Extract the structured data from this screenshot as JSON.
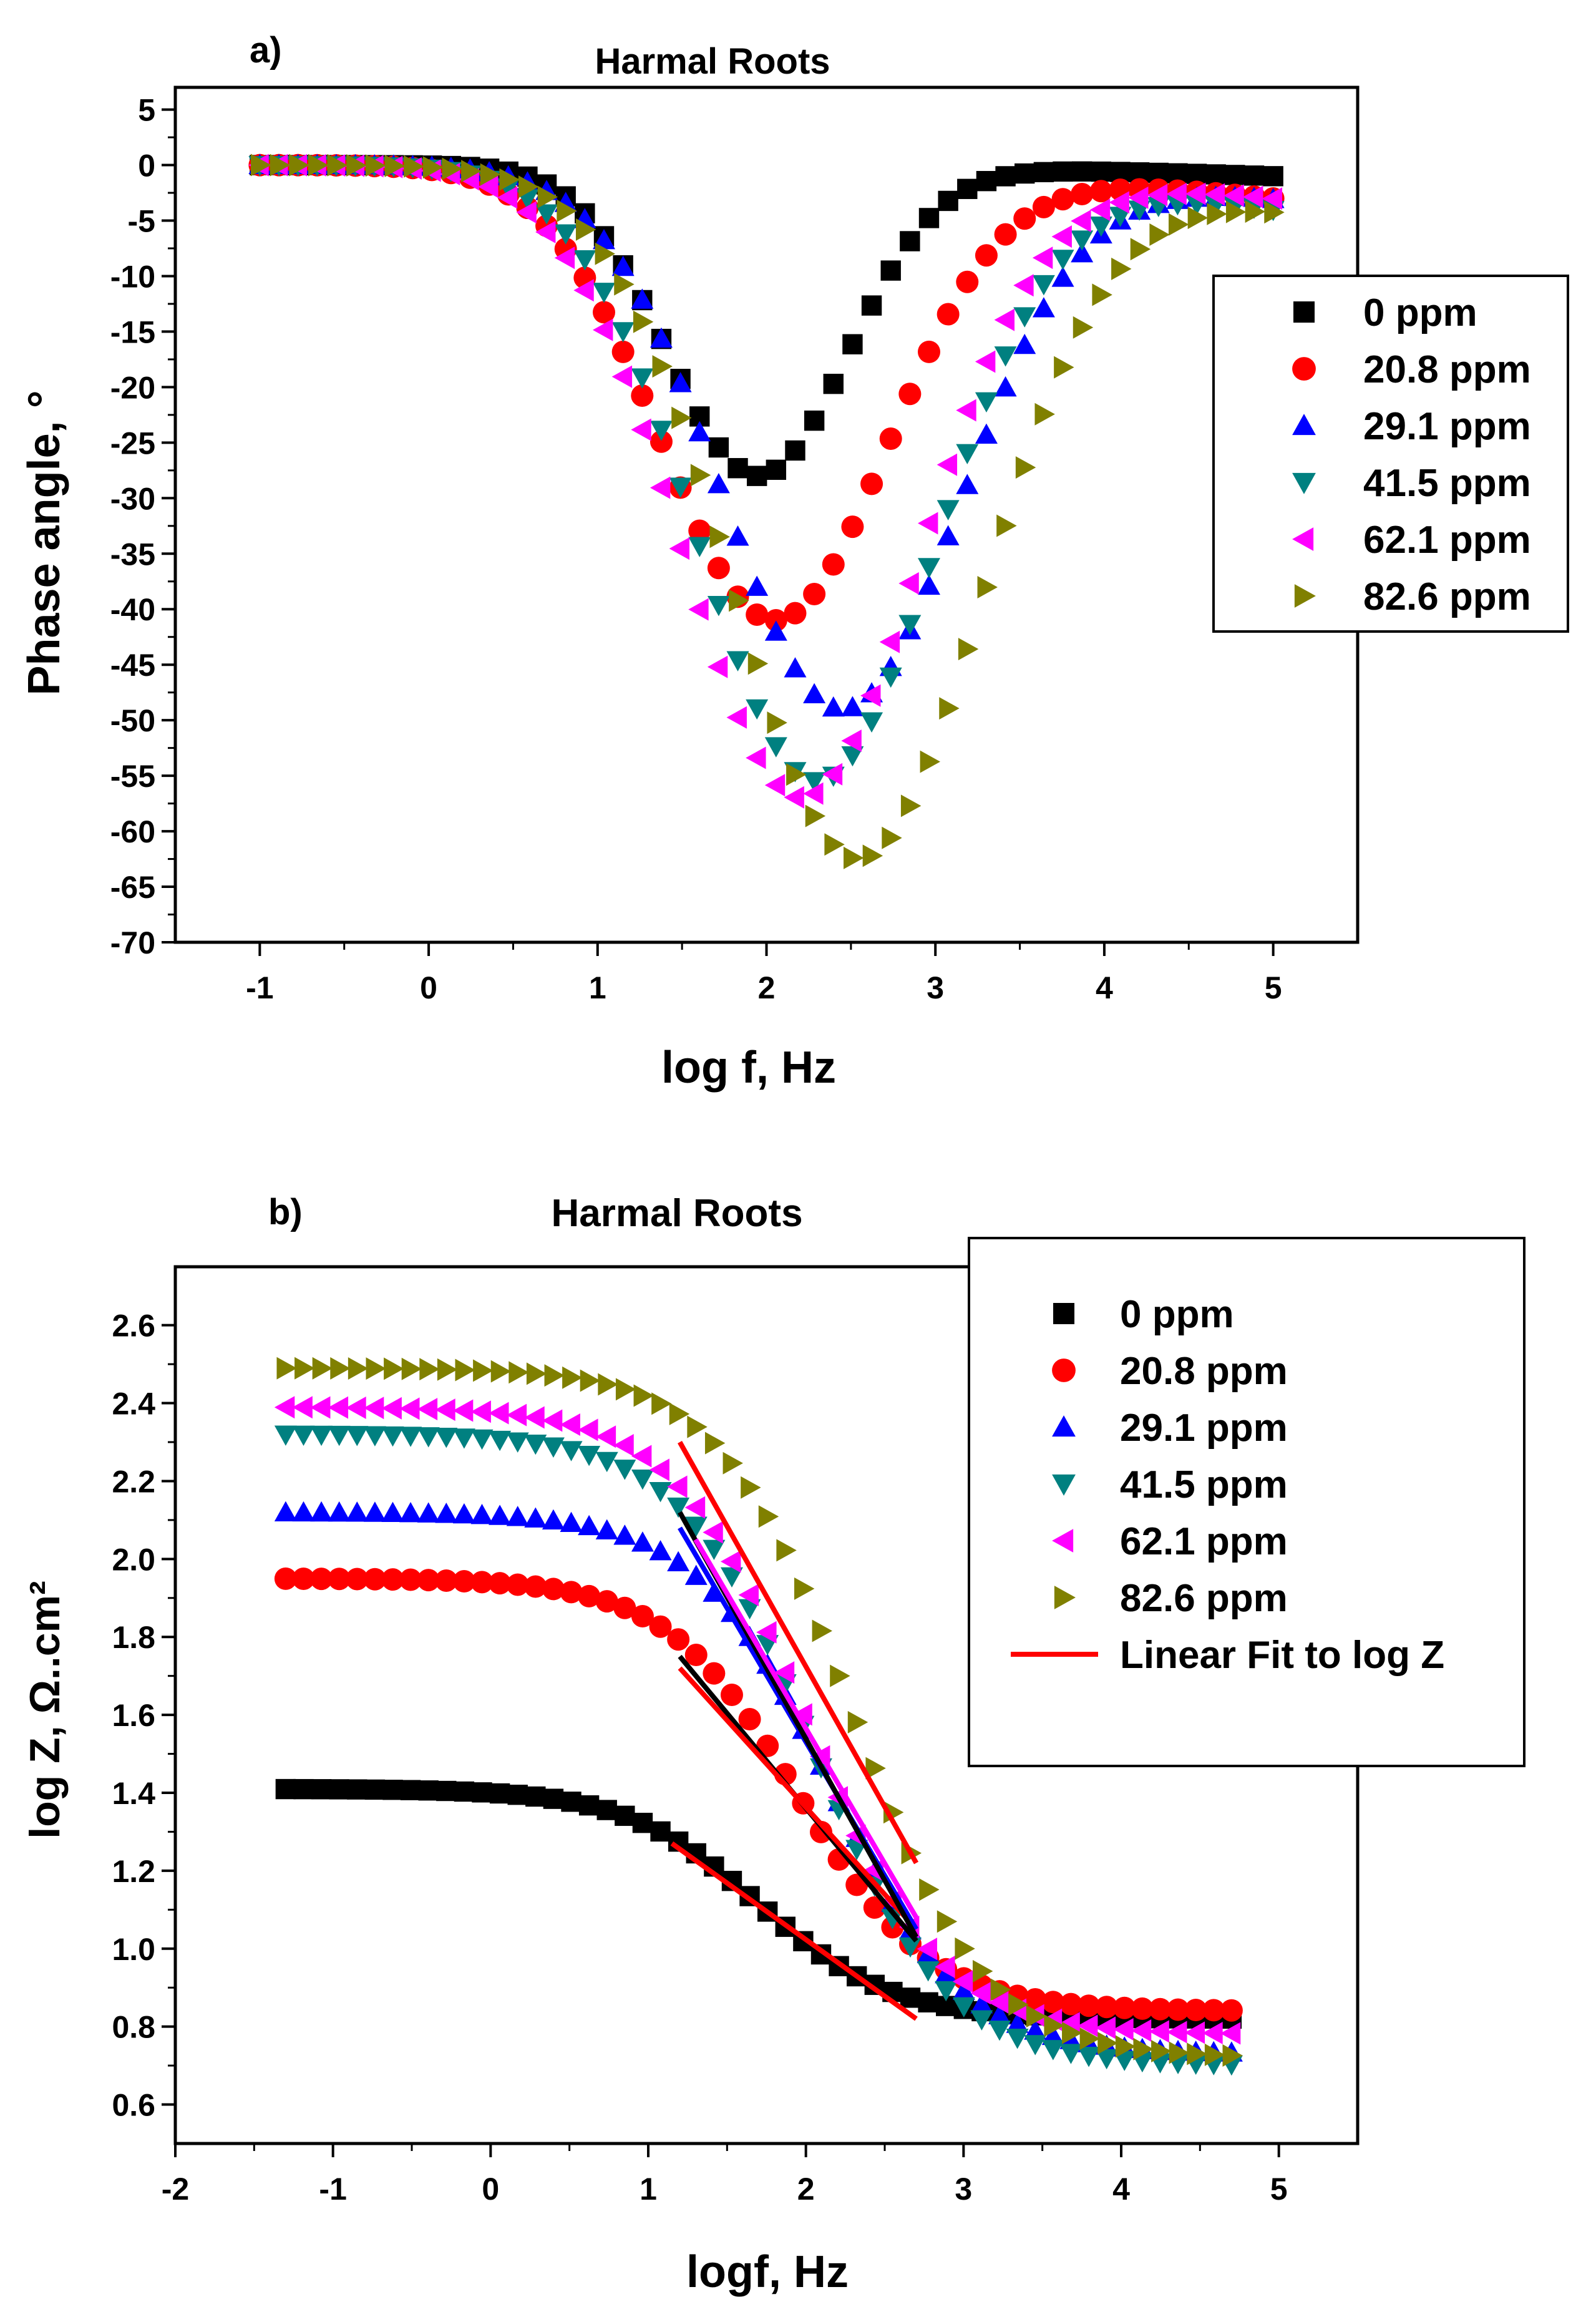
{
  "chart_data": [
    {
      "type": "scatter",
      "panel_label": "a)",
      "title": "Harmal Roots",
      "xlabel": "log f, Hz",
      "ylabel": "Phase angle, °",
      "xlim": [
        -1.5,
        5.5
      ],
      "ylim": [
        -70,
        7
      ],
      "xticks": [
        -1,
        0,
        1,
        2,
        3,
        4,
        5
      ],
      "yticks": [
        5,
        0,
        -5,
        -10,
        -15,
        -20,
        -25,
        -30,
        -35,
        -40,
        -45,
        -50,
        -55,
        -60,
        -65,
        -70
      ],
      "legend_position": "right",
      "series": [
        {
          "name": "0 ppm",
          "marker": "square",
          "color": "#000000",
          "model": "gauss",
          "depth": -28,
          "center": 1.95,
          "width": 0.75,
          "end": -1,
          "xmin": -1,
          "xmax": 5,
          "n": 54
        },
        {
          "name": "20.8 ppm",
          "marker": "circle",
          "color": "#ff0000",
          "model": "gauss",
          "depth": -41,
          "center": 2.05,
          "width": 0.95,
          "end": -3,
          "xmin": -1,
          "xmax": 5,
          "n": 54
        },
        {
          "name": "29.1 ppm",
          "marker": "triangle-up",
          "color": "#0000ff",
          "model": "gauss",
          "depth": -49,
          "center": 2.45,
          "width": 1.0,
          "end": -3,
          "xmin": -1,
          "xmax": 5,
          "n": 54
        },
        {
          "name": "41.5 ppm",
          "marker": "triangle-down",
          "color": "#008080",
          "model": "gauss",
          "depth": -55.5,
          "center": 2.3,
          "width": 1.0,
          "end": -4,
          "xmin": -1,
          "xmax": 5,
          "n": 54
        },
        {
          "name": "62.1 ppm",
          "marker": "triangle-left",
          "color": "#ff00ff",
          "model": "gauss",
          "depth": -57,
          "center": 2.2,
          "width": 1.0,
          "end": -3,
          "xmin": -1,
          "xmax": 5,
          "n": 54
        },
        {
          "name": "82.6 ppm",
          "marker": "triangle-right",
          "color": "#808000",
          "model": "gauss",
          "depth": -62.5,
          "center": 2.55,
          "width": 1.05,
          "end": -4,
          "xmin": -1,
          "xmax": 5,
          "n": 54
        }
      ]
    },
    {
      "type": "scatter",
      "panel_label": "b)",
      "title": "Harmal Roots",
      "xlabel": "logf, Hz",
      "ylabel": "log Z, Ω..cm²",
      "xlim": [
        -2,
        5.5
      ],
      "ylim": [
        0.5,
        2.75
      ],
      "xticks": [
        -2,
        -1,
        0,
        1,
        2,
        3,
        4,
        5
      ],
      "yticks": [
        0.6,
        0.8,
        1.0,
        1.2,
        1.4,
        1.6,
        1.8,
        2.0,
        2.2,
        2.4,
        2.6
      ],
      "legend_position": "top-right",
      "series": [
        {
          "name": "0 ppm",
          "marker": "square",
          "color": "#000000",
          "model": "sigmoid",
          "high": 1.41,
          "low": 0.82,
          "mid": 1.7,
          "steep": 0.42,
          "xmin": -1.3,
          "xmax": 4.7,
          "n": 54
        },
        {
          "name": "20.8 ppm",
          "marker": "circle",
          "color": "#ff0000",
          "model": "sigmoid",
          "high": 1.95,
          "low": 0.84,
          "mid": 1.95,
          "steep": 0.42,
          "xmin": -1.3,
          "xmax": 4.7,
          "n": 54
        },
        {
          "name": "29.1 ppm",
          "marker": "triangle-up",
          "color": "#0000ff",
          "model": "sigmoid",
          "high": 2.12,
          "low": 0.73,
          "mid": 2.15,
          "steep": 0.42,
          "xmin": -1.3,
          "xmax": 4.7,
          "n": 54
        },
        {
          "name": "41.5 ppm",
          "marker": "triangle-down",
          "color": "#008080",
          "model": "sigmoid",
          "high": 2.32,
          "low": 0.7,
          "mid": 2.05,
          "steep": 0.42,
          "xmin": -1.3,
          "xmax": 4.7,
          "n": 54
        },
        {
          "name": "62.1 ppm",
          "marker": "triangle-left",
          "color": "#ff00ff",
          "model": "sigmoid",
          "high": 2.39,
          "low": 0.78,
          "mid": 2.0,
          "steep": 0.42,
          "xmin": -1.3,
          "xmax": 4.7,
          "n": 54
        },
        {
          "name": "82.6 ppm",
          "marker": "triangle-right",
          "color": "#808000",
          "model": "sigmoid",
          "high": 2.49,
          "low": 0.72,
          "mid": 2.3,
          "steep": 0.42,
          "xmin": -1.3,
          "xmax": 4.7,
          "n": 54
        }
      ],
      "fit_legend_label": "Linear Fit to log Z",
      "fit_lines": [
        {
          "name": "fit 0 ppm",
          "x": [
            1.15,
            2.7
          ],
          "y": [
            1.27,
            0.82
          ],
          "color": "#ff0000"
        },
        {
          "name": "fit 20.8 ppm",
          "x": [
            1.2,
            2.7
          ],
          "y": [
            1.75,
            1.02
          ],
          "color": "#000000"
        },
        {
          "name": "fit 20.8 ppm b",
          "x": [
            1.2,
            2.7
          ],
          "y": [
            1.72,
            1.05
          ],
          "color": "#ff0000"
        },
        {
          "name": "fit 29.1 ppm",
          "x": [
            1.2,
            2.7
          ],
          "y": [
            2.08,
            1.05
          ],
          "color": "#0000ff"
        },
        {
          "name": "fit 41.5 ppm",
          "x": [
            1.2,
            2.7
          ],
          "y": [
            2.12,
            1.03
          ],
          "color": "#000000"
        },
        {
          "name": "fit 62.1 ppm",
          "x": [
            1.3,
            2.7
          ],
          "y": [
            2.05,
            1.08
          ],
          "color": "#ff00ff"
        },
        {
          "name": "fit 82.6 ppm",
          "x": [
            1.2,
            2.7
          ],
          "y": [
            2.3,
            1.22
          ],
          "color": "#ff0000"
        }
      ]
    }
  ]
}
